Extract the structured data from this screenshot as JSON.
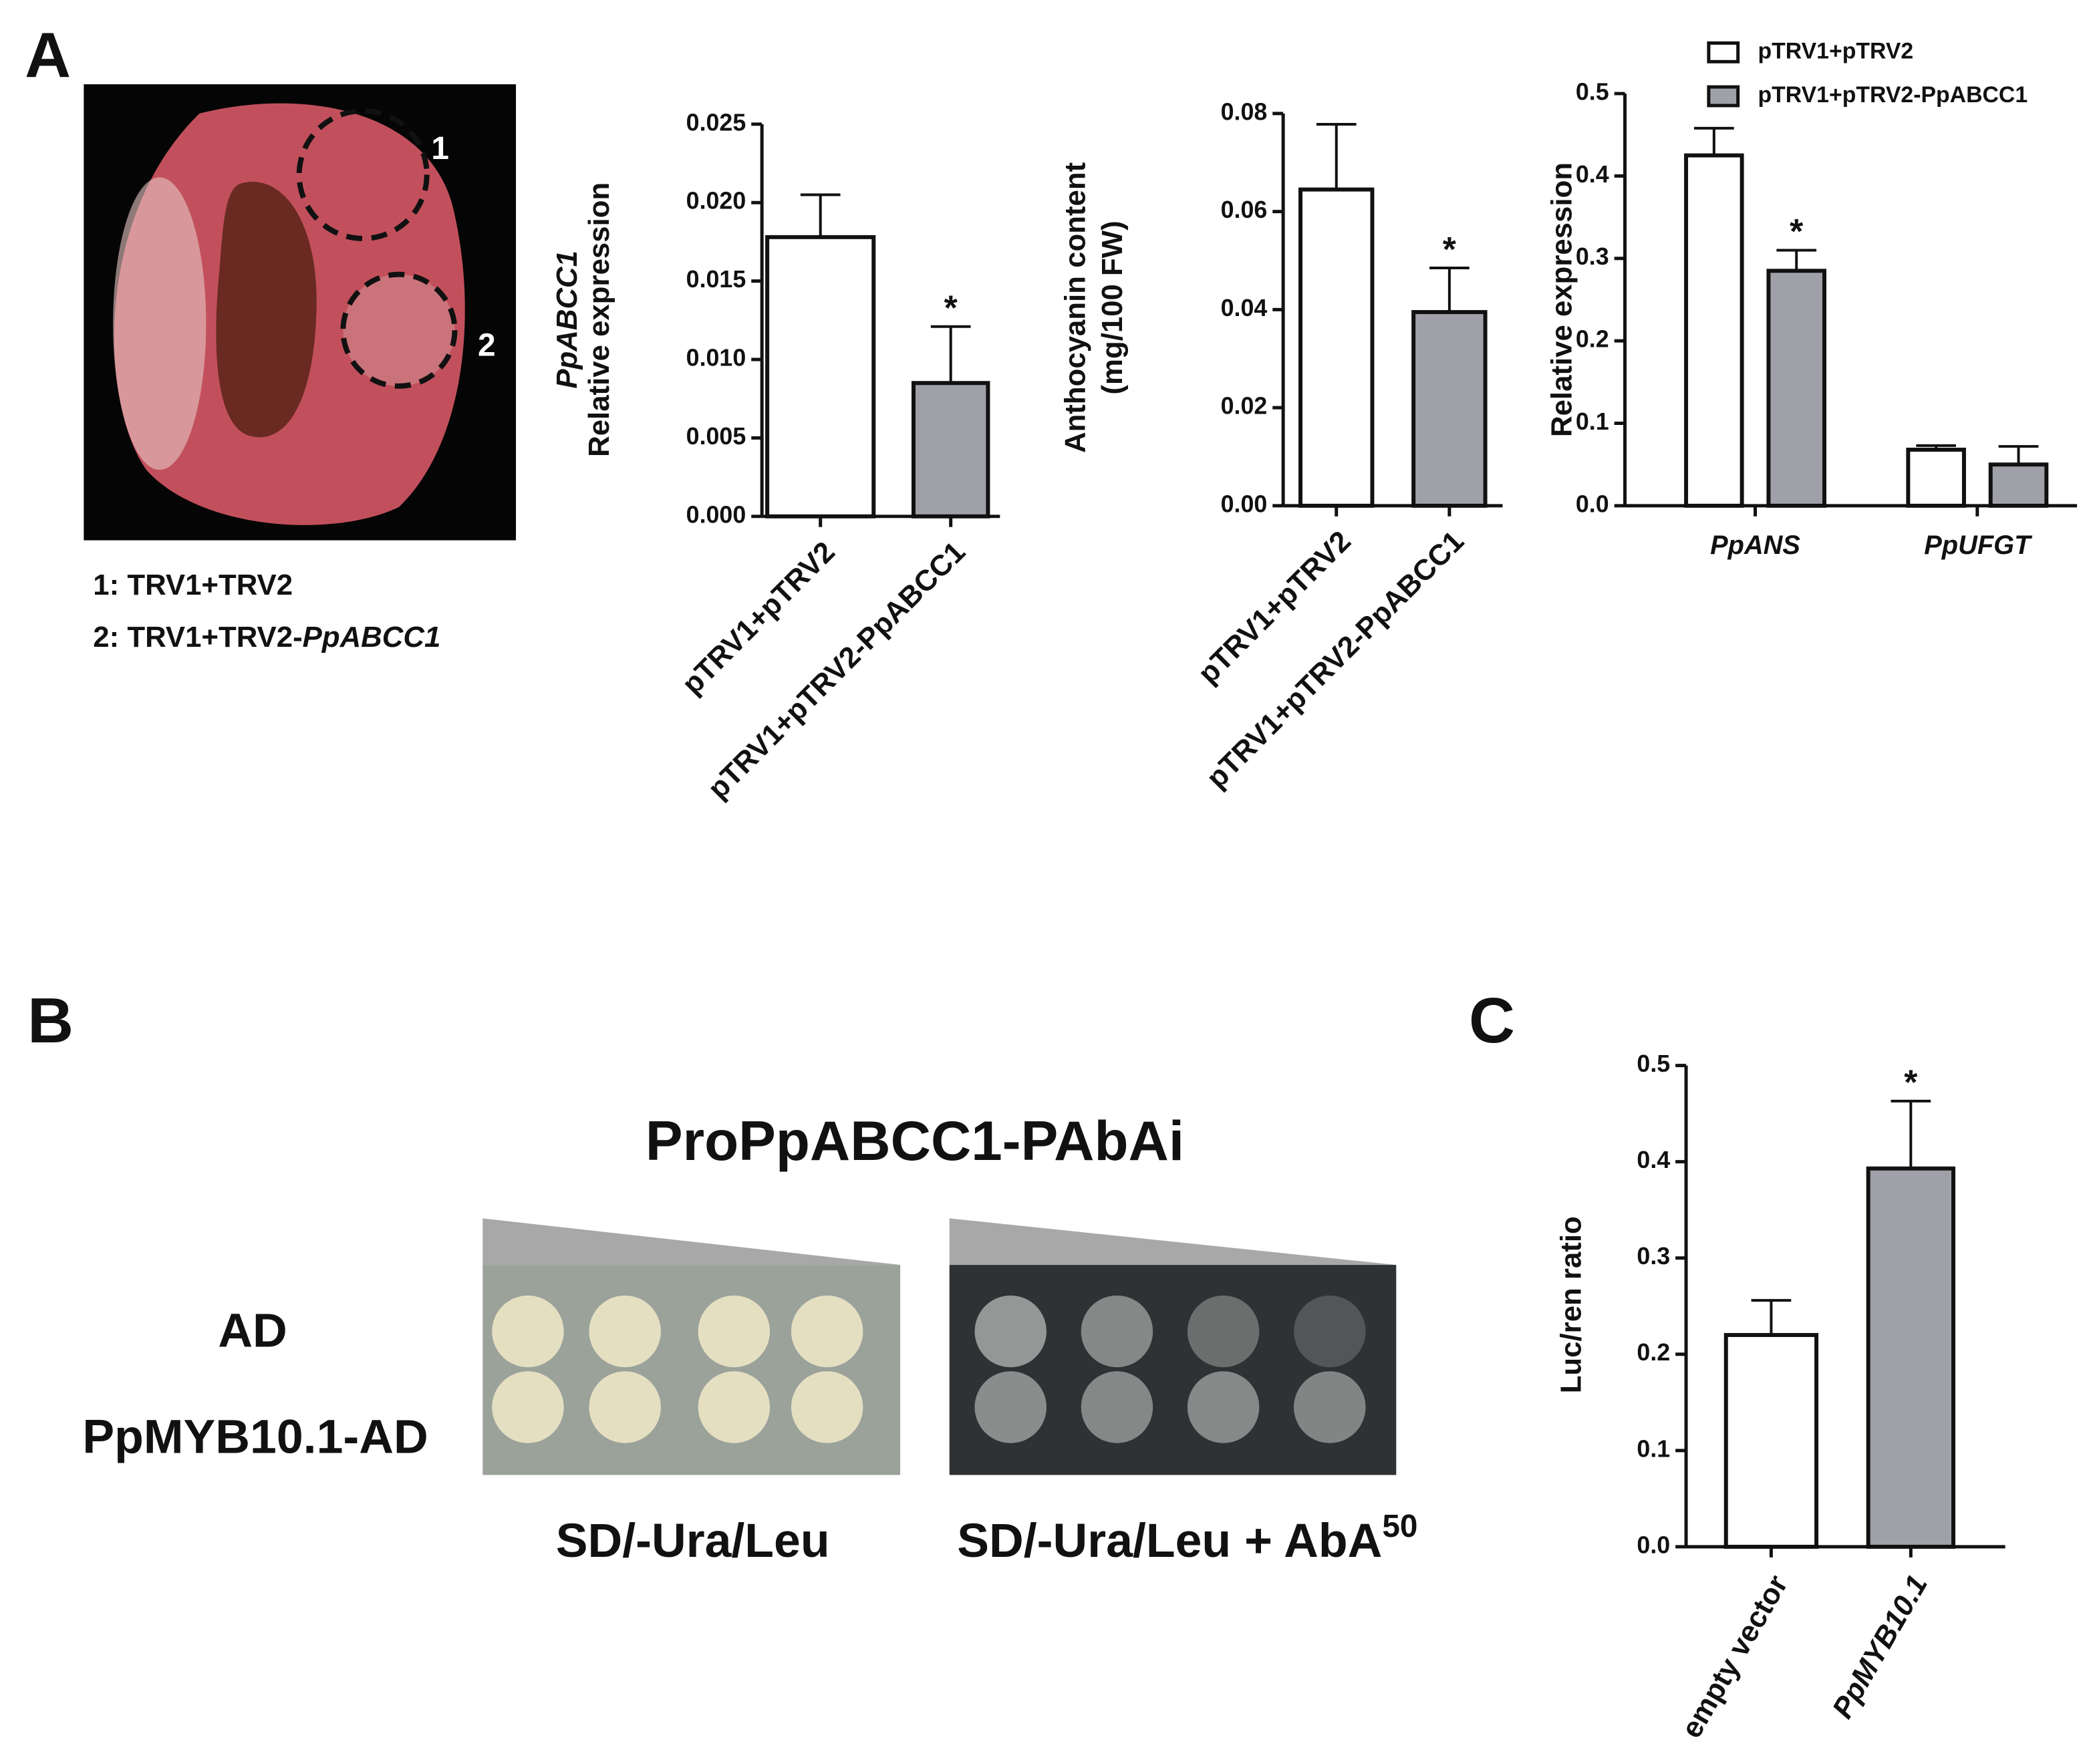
{
  "panels": {
    "a": "A",
    "b": "B",
    "c": "C"
  },
  "photo": {
    "marks": [
      "1",
      "2"
    ],
    "legend": [
      "1: TRV1+TRV2",
      {
        "text": "2: TRV1+TRV2-",
        "italic": "PpABCC1"
      }
    ]
  },
  "yeast": {
    "title": "ProPpABCC1-PAbAi",
    "rows": [
      "AD",
      "PpMYB10.1-AD"
    ],
    "conditions": [
      {
        "text": "SD/-Ura/Leu"
      },
      {
        "text": "SD/-Ura/Leu + AbA",
        "superscript": "50"
      }
    ]
  },
  "chart_data": [
    {
      "type": "bar",
      "ylabel": [
        "PpABCC1",
        "Relative expression"
      ],
      "categories": [
        "pTRV1+pTRV2",
        "pTRV1+pTRV2-PpABCC1"
      ],
      "values": [
        0.0178,
        0.0085
      ],
      "errors": [
        0.0027,
        0.0036
      ],
      "colors": [
        "#ffffff",
        "#a0a0a8"
      ],
      "ylim": [
        0,
        0.025
      ],
      "yticks": [
        {
          "value": 0,
          "label": "0.000"
        },
        {
          "value": 0.005,
          "label": "0.005"
        },
        {
          "value": 0.01,
          "label": "0.010"
        },
        {
          "value": 0.015,
          "label": "0.015"
        },
        {
          "value": 0.02,
          "label": "0.020"
        },
        {
          "value": 0.025,
          "label": "0.025"
        }
      ],
      "annotations": [
        "*"
      ]
    },
    {
      "type": "bar",
      "ylabel": [
        "Anthocyanin content",
        "(mg/100 FW)"
      ],
      "categories": [
        "pTRV1+pTRV2",
        "pTRV1+pTRV2-PpABCC1"
      ],
      "values": [
        0.0645,
        0.0395
      ],
      "errors": [
        0.0133,
        0.009
      ],
      "colors": [
        "#ffffff",
        "#a0a0a8"
      ],
      "ylim": [
        0,
        0.08
      ],
      "yticks": [
        {
          "value": 0,
          "label": "0.00"
        },
        {
          "value": 0.02,
          "label": "0.02"
        },
        {
          "value": 0.04,
          "label": "0.04"
        },
        {
          "value": 0.06,
          "label": "0.06"
        },
        {
          "value": 0.08,
          "label": "0.08"
        }
      ],
      "annotations": [
        "*"
      ]
    },
    {
      "type": "bar",
      "ylabel": [
        "Relative expression"
      ],
      "categories": [
        "PpANS",
        "PpUFGT"
      ],
      "series": [
        {
          "name": "pTRV1+pTRV2",
          "color": "#ffffff",
          "values": [
            0.425,
            0.068
          ],
          "errors": [
            0.033,
            0.005
          ]
        },
        {
          "name": "pTRV1+pTRV2-PpABCC1",
          "color": "#a0a0a8",
          "values": [
            0.285,
            0.05
          ],
          "errors": [
            0.025,
            0.022
          ]
        }
      ],
      "ylim": [
        0,
        0.5
      ],
      "yticks": [
        {
          "value": 0,
          "label": "0.0"
        },
        0.1,
        0.2,
        0.3,
        0.4,
        0.5
      ],
      "legend": "top",
      "annotations": [
        "*"
      ]
    },
    {
      "type": "bar",
      "ylabel": [
        "Luc/ren ratio"
      ],
      "categories": [
        "empty vector",
        "PpMYB10.1"
      ],
      "values": [
        0.22,
        0.393
      ],
      "errors": [
        0.036,
        0.07
      ],
      "colors": [
        "#ffffff",
        "#a0a0a8"
      ],
      "ylim": [
        0,
        0.5
      ],
      "yticks": [
        {
          "value": 0,
          "label": "0.0"
        },
        0.1,
        0.2,
        0.3,
        0.4,
        0.5
      ],
      "annotations": [
        "*"
      ]
    }
  ]
}
